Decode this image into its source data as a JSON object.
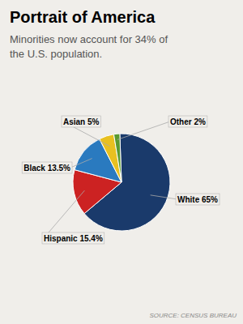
{
  "chart_data": {
    "type": "pie",
    "title": "Portrait of America",
    "subtitle": "Minorities now account for 34% of\nthe U.S. population.",
    "source": "SOURCE: CENSUS BUREAU",
    "values": [
      65.0,
      15.4,
      13.5,
      5.0,
      2.0
    ],
    "value_labels": [
      "White 65%",
      "Hispanic 15.4%",
      "Black 13.5%",
      "Asian 5%",
      "Other 2%"
    ],
    "colors": [
      "#1a3a6b",
      "#cc2222",
      "#2a7abf",
      "#e8c020",
      "#5a9a30"
    ],
    "data_labels": true
  }
}
